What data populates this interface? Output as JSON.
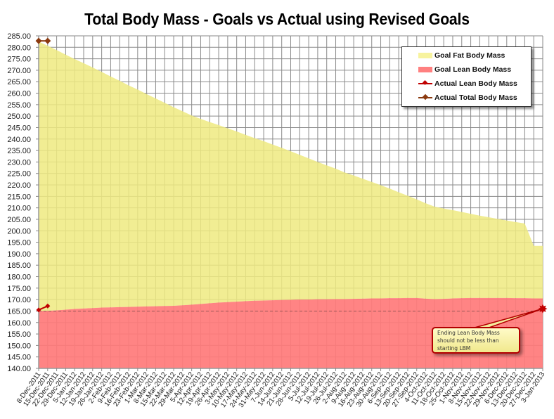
{
  "chart_data": {
    "type": "area",
    "title": "Total Body Mass - Goals vs Actual using Revised Goals",
    "xlabel": "",
    "ylabel": "",
    "ylim": [
      140,
      285
    ],
    "ytick_step": 5,
    "grid": true,
    "legend_position": "upper-right",
    "categories": [
      "8-Dec-2011",
      "15-Dec-2011",
      "22-Dec-2011",
      "29-Dec-2011",
      "5-Jan-2012",
      "12-Jan-2012",
      "19-Jan-2012",
      "26-Jan-2012",
      "2-Feb-2012",
      "9-Feb-2012",
      "16-Feb-2012",
      "23-Feb-2012",
      "1-Mar-2012",
      "8-Mar-2012",
      "15-Mar-2012",
      "22-Mar-2012",
      "29-Mar-2012",
      "5-Apr-2012",
      "12-Apr-2012",
      "19-Apr-2012",
      "26-Apr-2012",
      "3-May-2012",
      "10-May-2012",
      "17-May-2012",
      "24-May-2012",
      "31-May-2012",
      "7-Jun-2012",
      "14-Jun-2012",
      "21-Jun-2012",
      "28-Jun-2012",
      "5-Jul-2012",
      "12-Jul-2012",
      "19-Jul-2012",
      "26-Jul-2012",
      "2-Aug-2012",
      "9-Aug-2012",
      "16-Aug-2012",
      "23-Aug-2012",
      "30-Aug-2012",
      "6-Sep-2012",
      "13-Sep-2012",
      "20-Sep-2012",
      "27-Sep-2012",
      "4-Oct-2012",
      "11-Oct-2012",
      "18-Oct-2012",
      "25-Oct-2012",
      "1-Nov-2012",
      "8-Nov-2012",
      "15-Nov-2012",
      "22-Nov-2012",
      "29-Nov-2012",
      "6-Dec-2012",
      "13-Dec-2012",
      "20-Dec-2012",
      "27-Dec-2012",
      "3-Jan-2013"
    ],
    "series": [
      {
        "name": "Goal Lean Body Mass",
        "type": "area",
        "color": "#ff8080",
        "values": [
          165.0,
          165.1,
          165.3,
          165.6,
          165.9,
          166.1,
          166.3,
          166.5,
          166.6,
          166.7,
          166.8,
          166.9,
          167.0,
          167.1,
          167.2,
          167.3,
          167.5,
          167.8,
          168.1,
          168.4,
          168.7,
          168.9,
          169.1,
          169.3,
          169.5,
          169.6,
          169.7,
          169.8,
          169.9,
          170.0,
          170.0,
          170.1,
          170.1,
          170.2,
          170.2,
          170.3,
          170.4,
          170.5,
          170.5,
          170.6,
          170.6,
          170.7,
          170.7,
          170.4,
          170.2,
          170.3,
          170.5,
          170.6,
          170.7,
          170.7,
          170.7,
          170.7,
          170.7,
          170.6,
          170.6,
          170.5,
          170.5
        ]
      },
      {
        "name": "Goal Fat Body Mass",
        "type": "area",
        "stacked_on": "Goal Lean Body Mass",
        "color": "#f3ef9a",
        "values": [
          117.5,
          115.6,
          113.5,
          111.2,
          109.0,
          107.0,
          104.9,
          102.8,
          100.7,
          98.7,
          96.6,
          94.7,
          92.6,
          90.6,
          88.6,
          86.6,
          84.6,
          82.5,
          80.7,
          79.0,
          77.4,
          75.8,
          74.2,
          72.5,
          70.9,
          69.5,
          67.9,
          66.4,
          64.8,
          63.1,
          61.6,
          59.9,
          58.4,
          56.9,
          55.2,
          53.8,
          52.3,
          50.8,
          49.4,
          47.8,
          46.2,
          44.6,
          43.0,
          41.6,
          40.3,
          39.4,
          38.5,
          37.6,
          36.7,
          35.9,
          35.2,
          34.5,
          33.8,
          33.2,
          32.6,
          22.9,
          22.9
        ]
      },
      {
        "name": "Actual Lean Body Mass",
        "type": "line",
        "color": "#c00000",
        "marker": "diamond",
        "values": [
          165.5,
          167.2
        ]
      },
      {
        "name": "Actual Total Body Mass",
        "type": "line",
        "color": "#8b3a0f",
        "marker": "diamond",
        "values": [
          282.8,
          282.8
        ]
      }
    ],
    "goal_total_approx": "282.5 at 8-Dec-2011 declining to ~193.5 at 3-Jan-2013",
    "reference_line": {
      "style": "dashed",
      "value": 165.0,
      "label": "starting LBM"
    },
    "end_marker": {
      "category": "3-Jan-2013",
      "value": 166.0,
      "shape": "starburst",
      "color": "#c00000"
    },
    "annotations": [
      {
        "text": "Ending Lean Body Mass should not be less than starting LBM",
        "points_to": "3-Jan-2013"
      }
    ]
  },
  "legend": {
    "items": [
      {
        "label": "Goal Fat Body Mass",
        "color": "#f7f39e",
        "kind": "swatch"
      },
      {
        "label": "Goal Lean Body Mass",
        "color": "#ff8080",
        "kind": "swatch"
      },
      {
        "label": "Actual Lean Body Mass",
        "color": "#c00000",
        "kind": "line"
      },
      {
        "label": "Actual Total Body Mass",
        "color": "#8b3a0f",
        "kind": "line"
      }
    ]
  },
  "callout": {
    "text": "Ending Lean Body Mass should not be less than starting LBM"
  }
}
